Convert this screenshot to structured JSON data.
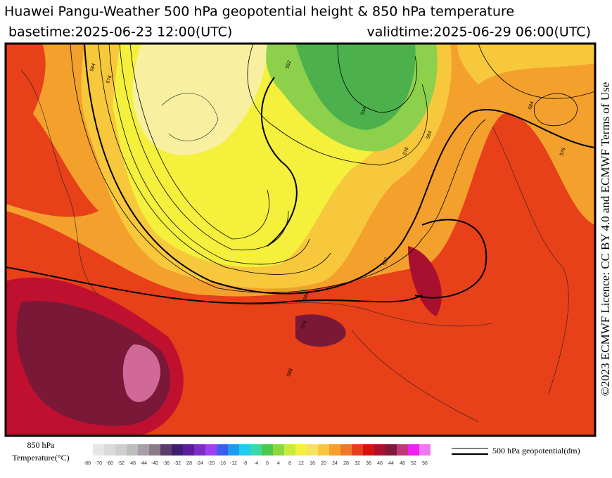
{
  "header": {
    "title": "Huawei Pangu-Weather 500 hPa geopotential height & 850 hPa temperature",
    "basetime": "basetime:2025-06-23 12:00(UTC)",
    "validtime": "validtime:2025-06-29 06:00(UTC)"
  },
  "licence": "©2023 ECMWF Licence: CC BY 4.0 and ECMWF Terms of Use",
  "legend": {
    "temperature_label": [
      "850 hPa",
      "Temperature(°C)"
    ],
    "colorbar": {
      "ticks": [
        -80,
        -70,
        -60,
        -52,
        -48,
        -44,
        -40,
        -36,
        -32,
        -28,
        -24,
        -20,
        -16,
        -12,
        -8,
        -4,
        0,
        4,
        8,
        12,
        16,
        20,
        24,
        28,
        32,
        36,
        40,
        44,
        48,
        52,
        56
      ],
      "colors": [
        "#e6e6e6",
        "#dadada",
        "#cecece",
        "#bdbdbd",
        "#a89ea8",
        "#8a7a8a",
        "#5c3c6c",
        "#3e1e6e",
        "#5c1c9c",
        "#7c2cc8",
        "#a040f0",
        "#3c5cf0",
        "#1c9cf0",
        "#20ccf0",
        "#3cd8a8",
        "#4cc84c",
        "#8cd83c",
        "#c8ec3c",
        "#f4f03c",
        "#f8e060",
        "#f8c83c",
        "#f8a028",
        "#f07828",
        "#e83c1c",
        "#d81010",
        "#a81030",
        "#801838",
        "#c03878",
        "#f020f0",
        "#f078f0"
      ]
    },
    "geopotential_label": "500 hPa geopotential(dm)"
  },
  "contour_labels": [
    "552",
    "544",
    "576",
    "584",
    "576",
    "584",
    "576",
    "584",
    "588",
    "592",
    "576",
    "588"
  ]
}
